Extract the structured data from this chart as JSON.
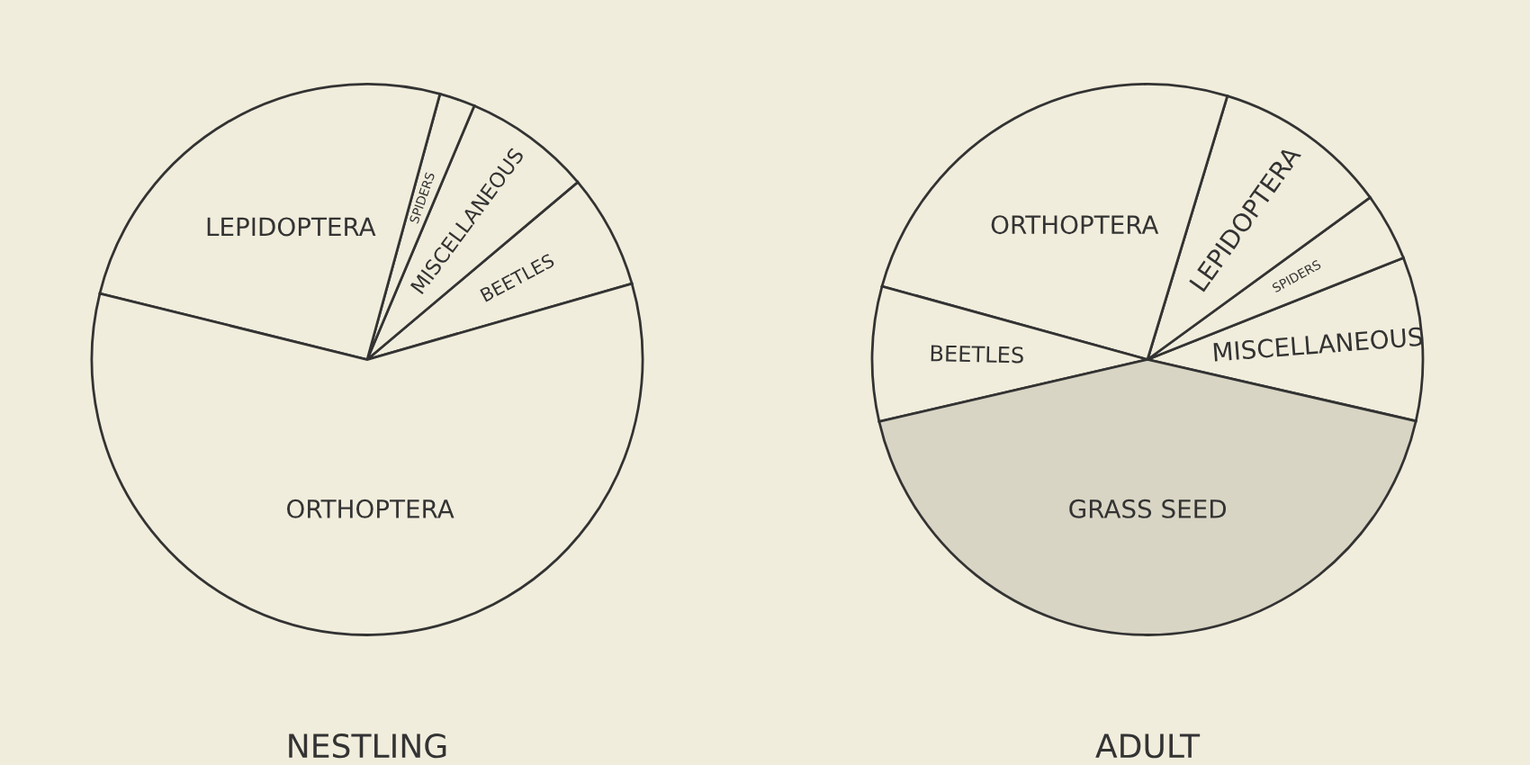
{
  "chart_data": [
    {
      "type": "pie",
      "title": "NESTLING",
      "categories": [
        "BEETLES",
        "MISCELLANEOUS",
        "SPIDERS",
        "LEPIDOPTERA",
        "ORTHOPTERA"
      ],
      "values": [
        6.7,
        7.5,
        2.1,
        25.4,
        58.3
      ],
      "colors": [
        "#f1eddc",
        "#f1eddc",
        "#f1eddc",
        "#f1eddc",
        "#f1eddc"
      ]
    },
    {
      "type": "pie",
      "title": "ADULT",
      "categories": [
        "MISCELLANEOUS",
        "SPIDERS",
        "LEPIDOPTERA",
        "ORTHOPTERA",
        "BEETLES",
        "GRASS SEED"
      ],
      "values": [
        9.6,
        4.0,
        10.3,
        25.4,
        7.9,
        42.8
      ],
      "colors": [
        "#f1eddc",
        "#f1eddc",
        "#f1eddc",
        "#f1eddc",
        "#f1eddc",
        "#d9d5c4"
      ]
    }
  ]
}
